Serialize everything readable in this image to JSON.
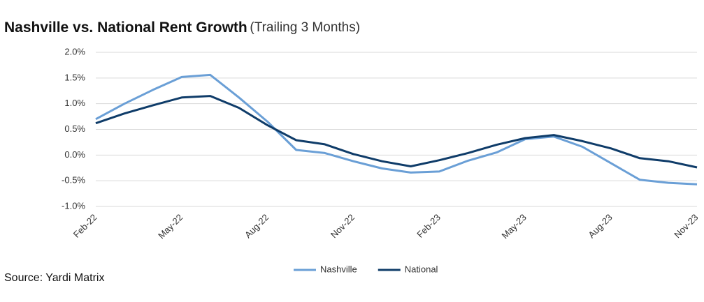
{
  "chart_data": {
    "type": "line",
    "title": "Nashville vs. National Rent Growth",
    "subtitle": "(Trailing 3 Months)",
    "source": "Source: Yardi Matrix",
    "categories": [
      "Feb-22",
      null,
      null,
      "May-22",
      null,
      null,
      "Aug-22",
      null,
      null,
      "Nov-22",
      null,
      null,
      "Feb-23",
      null,
      null,
      "May-23",
      null,
      null,
      "Aug-23",
      null,
      null,
      "Nov-23"
    ],
    "series": [
      {
        "name": "Nashville",
        "color": "#6a9fd6",
        "values": [
          0.7,
          1.0,
          1.27,
          1.52,
          1.56,
          1.12,
          0.65,
          0.1,
          0.04,
          -0.12,
          -0.26,
          -0.34,
          -0.32,
          -0.11,
          0.05,
          0.31,
          0.36,
          0.16,
          -0.16,
          -0.48,
          -0.54,
          -0.57
        ]
      },
      {
        "name": "National",
        "color": "#0f3c69",
        "values": [
          0.62,
          0.81,
          0.97,
          1.12,
          1.15,
          0.92,
          0.58,
          0.29,
          0.21,
          0.02,
          -0.12,
          -0.22,
          -0.1,
          0.04,
          0.2,
          0.33,
          0.39,
          0.27,
          0.13,
          -0.06,
          -0.12,
          -0.24
        ]
      }
    ],
    "ylim": [
      -1.0,
      2.0
    ],
    "yticks": [
      {
        "value": -1.0,
        "label": "-1.0%"
      },
      {
        "value": -0.5,
        "label": "-0.5%"
      },
      {
        "value": 0.0,
        "label": "0.0%"
      },
      {
        "value": 0.5,
        "label": "0.5%"
      },
      {
        "value": 1.0,
        "label": "1.0%"
      },
      {
        "value": 1.5,
        "label": "1.5%"
      },
      {
        "value": 2.0,
        "label": "2.0%"
      }
    ],
    "grid": true,
    "legend": "bottom"
  }
}
